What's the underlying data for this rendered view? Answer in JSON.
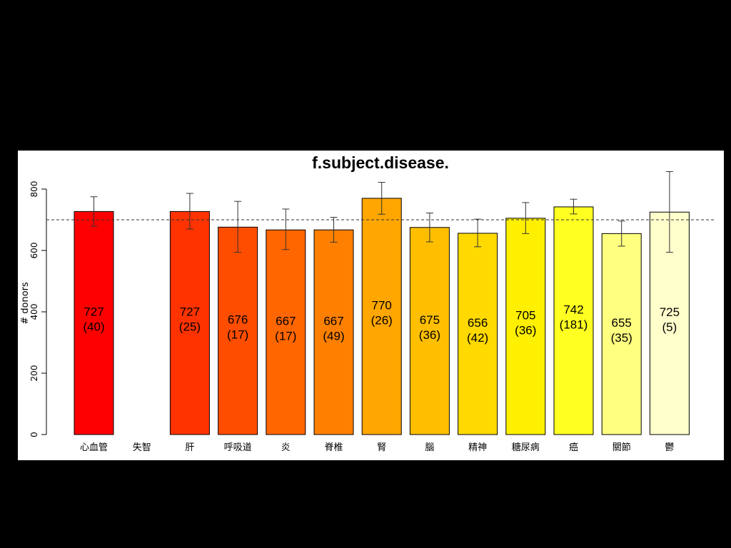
{
  "chart_data": {
    "type": "bar",
    "title": "f.subject.disease.",
    "xlabel": "",
    "ylabel": "# donors",
    "ylim": [
      0,
      800
    ],
    "yticks": [
      0,
      200,
      400,
      600,
      800
    ],
    "reference_line": 700,
    "categories": [
      "心血管",
      "失智",
      "肝",
      "呼吸道",
      "炎",
      "脊椎",
      "腎",
      "腦",
      "精神",
      "糖尿病",
      "癌",
      "關節",
      "鬱"
    ],
    "values": [
      727,
      null,
      727,
      676,
      667,
      667,
      770,
      675,
      656,
      705,
      742,
      655,
      725
    ],
    "counts": [
      40,
      null,
      25,
      17,
      17,
      49,
      26,
      36,
      42,
      36,
      181,
      35,
      5
    ],
    "value_labels": [
      "727",
      "",
      "727",
      "676",
      "667",
      "667",
      "770",
      "675",
      "656",
      "705",
      "742",
      "655",
      "725"
    ],
    "count_labels": [
      "(40)",
      "",
      "(25)",
      "(17)",
      "(17)",
      "(49)",
      "(26)",
      "(36)",
      "(42)",
      "(36)",
      "(181)",
      "(35)",
      "(5)"
    ],
    "error_low": [
      679,
      null,
      670,
      594,
      603,
      627,
      718,
      628,
      612,
      655,
      719,
      614,
      594
    ],
    "error_high": [
      775,
      null,
      786,
      760,
      735,
      708,
      822,
      722,
      702,
      756,
      767,
      696,
      857
    ],
    "colors": [
      "#ff0000",
      "#ffffff",
      "#ff3300",
      "#ff4d00",
      "#ff6600",
      "#ff8000",
      "#ffa600",
      "#ffbf00",
      "#ffd900",
      "#ffef00",
      "#ffff22",
      "#ffff80",
      "#ffffcc"
    ],
    "grid": false
  }
}
